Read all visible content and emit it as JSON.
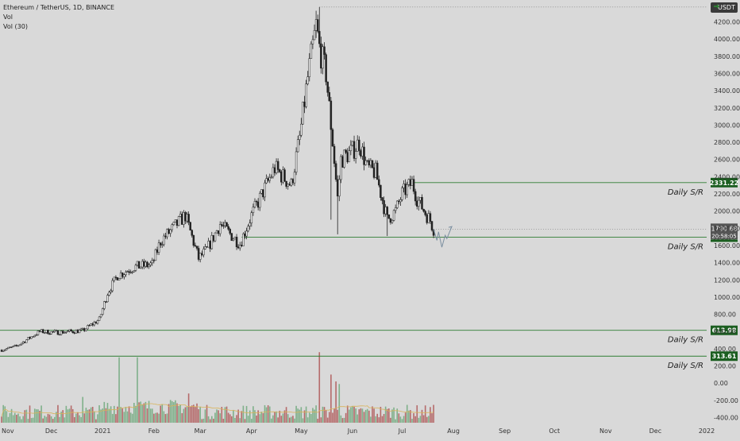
{
  "header": {
    "symbol": "Ethereum / TetherUS, 1D, BINANCE",
    "indicator_1": "Vol",
    "indicator_2": "Vol (30)"
  },
  "currency_badge": "USDT",
  "countdown": "20:58:05",
  "colors": {
    "background": "#d9d9d9",
    "candle": "#222222",
    "sr_line": "#2e7d32",
    "sr_label_bg": "#1b5e20",
    "vol_up": "#7fb08a",
    "vol_down": "#b56a6a",
    "vol_ma": "#d9b35a",
    "ghost_path": "#7b8fa0"
  },
  "chart_data": [
    {
      "type": "candlestick",
      "price_axis": {
        "ticks": [
          "4200.00",
          "4000.00",
          "3800.00",
          "3600.00",
          "3400.00",
          "3200.00",
          "3000.00",
          "2800.00",
          "2600.00",
          "2400.00",
          "2200.00",
          "2000.00",
          "1800.00",
          "1600.00",
          "1400.00",
          "1200.00",
          "1000.00",
          "800.00",
          "600.00",
          "400.00",
          "200.00",
          "0.00",
          "-200.00",
          "-400.00"
        ],
        "ylim": [
          -460,
          4380
        ]
      },
      "time_axis": {
        "ticks": [
          "Nov",
          "Dec",
          "2021",
          "Feb",
          "Mar",
          "Apr",
          "May",
          "Jun",
          "Jul",
          "Aug",
          "Sep",
          "Oct",
          "Nov",
          "Dec",
          "2022"
        ],
        "x_range": [
          "2020-10-31",
          "2022-01-01"
        ]
      },
      "close_path": [
        [
          "2020-11-01",
          385
        ],
        [
          "2020-11-10",
          430
        ],
        [
          "2020-11-24",
          600
        ],
        [
          "2020-12-05",
          590
        ],
        [
          "2020-12-20",
          610
        ],
        [
          "2020-12-30",
          740
        ],
        [
          "2021-01-04",
          1050
        ],
        [
          "2021-01-10",
          1250
        ],
        [
          "2021-01-20",
          1350
        ],
        [
          "2021-01-31",
          1380
        ],
        [
          "2021-02-05",
          1650
        ],
        [
          "2021-02-20",
          1950
        ],
        [
          "2021-02-28",
          1450
        ],
        [
          "2021-03-05",
          1550
        ],
        [
          "2021-03-13",
          1850
        ],
        [
          "2021-03-25",
          1620
        ],
        [
          "2021-04-01",
          1950
        ],
        [
          "2021-04-15",
          2500
        ],
        [
          "2021-04-25",
          2300
        ],
        [
          "2021-04-30",
          2850
        ],
        [
          "2021-05-05",
          3550
        ],
        [
          "2021-05-10",
          4150
        ],
        [
          "2021-05-12",
          3900
        ],
        [
          "2021-05-16",
          3600
        ],
        [
          "2021-05-20",
          2800
        ],
        [
          "2021-05-23",
          2150
        ],
        [
          "2021-05-25",
          2600
        ],
        [
          "2021-06-01",
          2700
        ],
        [
          "2021-06-05",
          2800
        ],
        [
          "2021-06-10",
          2500
        ],
        [
          "2021-06-15",
          2450
        ],
        [
          "2021-06-22",
          1900
        ],
        [
          "2021-06-27",
          2000
        ],
        [
          "2021-07-01",
          2200
        ],
        [
          "2021-07-07",
          2330
        ],
        [
          "2021-07-10",
          2150
        ],
        [
          "2021-07-15",
          1980
        ],
        [
          "2021-07-18",
          1890
        ],
        [
          "2021-07-20",
          1790
        ]
      ],
      "high": {
        "date": "2021-05-12",
        "value": 4372
      },
      "support_resistance": [
        {
          "value": 2331.22,
          "label": "2331.22",
          "tag": "Daily S/R",
          "start": "2021-07-07"
        },
        {
          "value": 1697.12,
          "label": "1697.12",
          "tag": "Daily S/R",
          "start": "2021-03-26"
        },
        {
          "value": 613.98,
          "label": "613.98",
          "tag": "Daily S/R",
          "start": "2020-10-31"
        },
        {
          "value": 313.61,
          "label": "313.61",
          "tag": "Daily S/R",
          "start": "2020-10-31"
        }
      ],
      "last_price": {
        "value": 1790.68,
        "label": "1790.68"
      },
      "projection": [
        [
          "2021-07-20",
          1790
        ],
        [
          "2021-07-22",
          1660
        ],
        [
          "2021-07-23",
          1760
        ],
        [
          "2021-07-25",
          1580
        ],
        [
          "2021-07-27",
          1720
        ],
        [
          "2021-07-28",
          1680
        ],
        [
          "2021-07-31",
          1820
        ]
      ],
      "volume": {
        "note": "volume histogram overlays the lower part of the price scale",
        "spikes": [
          [
            "2020-12-20",
            300
          ],
          [
            "2021-01-11",
            760
          ],
          [
            "2021-01-22",
            760
          ],
          [
            "2021-02-22",
            340
          ],
          [
            "2021-05-12",
            820
          ],
          [
            "2021-05-19",
            560
          ],
          [
            "2021-05-22",
            480
          ],
          [
            "2021-05-24",
            450
          ]
        ]
      }
    }
  ]
}
